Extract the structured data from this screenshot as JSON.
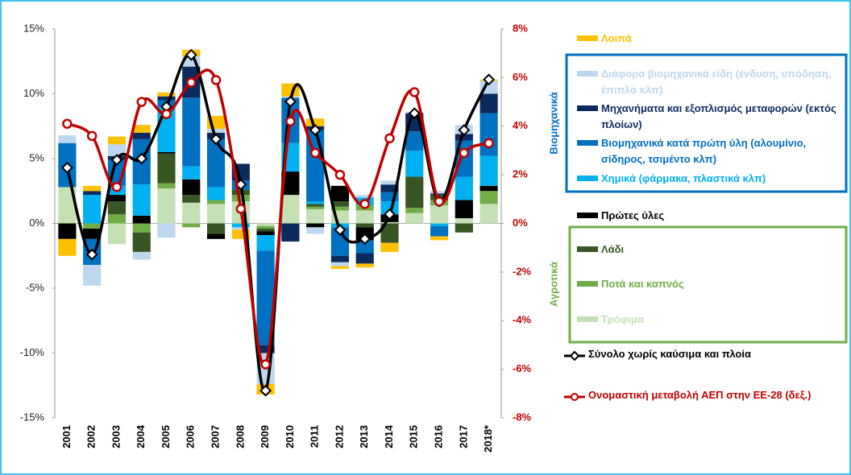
{
  "chart_data": {
    "type": "bar",
    "categories": [
      "2001",
      "2002",
      "2003",
      "2004",
      "2005",
      "2006",
      "2007",
      "2008",
      "2009",
      "2010",
      "2011",
      "2012",
      "2013",
      "2014",
      "2015",
      "2016",
      "2017",
      "2018*"
    ],
    "ylim": [
      -15,
      15
    ],
    "yticks": [
      {
        "value": -15,
        "label": "-15%"
      },
      {
        "value": -10,
        "label": "-10%"
      },
      {
        "value": -5,
        "label": "-5%"
      },
      {
        "value": 0,
        "label": "0%"
      },
      {
        "value": 5,
        "label": "5%"
      },
      {
        "value": 10,
        "label": "10%"
      },
      {
        "value": 15,
        "label": "15%"
      }
    ],
    "y2lim": [
      -8,
      8
    ],
    "y2ticks": [
      {
        "value": -8,
        "label": "-8%"
      },
      {
        "value": -6,
        "label": "-6%"
      },
      {
        "value": -4,
        "label": "-4%"
      },
      {
        "value": -2,
        "label": "-2%"
      },
      {
        "value": 0,
        "label": "0%"
      },
      {
        "value": 2,
        "label": "2%"
      },
      {
        "value": 4,
        "label": "4%"
      },
      {
        "value": 6,
        "label": "6%"
      },
      {
        "value": 8,
        "label": "8%"
      }
    ],
    "annotations": [
      "Βιομηχανικά",
      "Αγροτικά"
    ],
    "series": [
      {
        "name": "Λοιπά",
        "color": "#ffc000",
        "values": [
          -1.3,
          0.4,
          0.6,
          0.6,
          0.3,
          0.5,
          1.0,
          -0.7,
          -0.8,
          1.0,
          0.6,
          -0.2,
          -0.3,
          -0.7,
          0,
          -0.3,
          0,
          0.1
        ]
      },
      {
        "name": "Διάφορα βιομηχανικά είδη (ένδυση, υπόδηση, έπιπλα κλπ)",
        "color": "#bdd7ee",
        "values": [
          0.6,
          -1.6,
          0.9,
          -0.6,
          -1.1,
          0.8,
          0.3,
          -0.2,
          -2.4,
          0.1,
          -0.5,
          -0.3,
          0.2,
          0.3,
          0.1,
          0.2,
          0.7,
          1.0
        ]
      },
      {
        "name": "Μηχανήματα και εξοπλισμός μεταφορών (εκτός πλοίων)",
        "color": "#0b2a5e",
        "values": [
          0,
          0.3,
          0.3,
          0.5,
          0.3,
          2.4,
          0.5,
          1.3,
          -0.6,
          -1.4,
          0.3,
          -0.5,
          -0.8,
          0.6,
          1.4,
          0.1,
          0.5,
          1.5
        ]
      },
      {
        "name": "Βιομηχανικά κατά πρώτη ύλη (αλουμίνιο, σίδηρος, τσιμέντο κλπ)",
        "color": "#0070c0",
        "values": [
          3.4,
          -2.0,
          2.0,
          3.5,
          0.5,
          5.3,
          3.7,
          0.7,
          -7.3,
          3.5,
          5.5,
          -2.2,
          -1.0,
          0.7,
          1.5,
          -0.8,
          2.8,
          3.3
        ]
      },
      {
        "name": "Χημικά (φάρμακα, πλαστικά κλπ)",
        "color": "#00b0f0",
        "values": [
          0,
          2.2,
          0.7,
          2.4,
          3.5,
          1.0,
          1.0,
          -0.3,
          -1.2,
          2.2,
          0.2,
          -0.3,
          0.6,
          1.0,
          2.0,
          -0.2,
          1.8,
          2.3
        ]
      },
      {
        "name": "Πρώτες ύλες",
        "color": "#000000",
        "values": [
          -1.2,
          -0.8,
          0.5,
          0.6,
          0.1,
          1.2,
          -0.4,
          0,
          -0.3,
          1.8,
          -0.3,
          1.2,
          -1.0,
          0.6,
          0,
          0,
          1.4,
          0.4
        ]
      },
      {
        "name": "Λάδι",
        "color": "#375623",
        "values": [
          0,
          0,
          1.0,
          -1.5,
          2.3,
          0.6,
          -0.8,
          0.4,
          -0.2,
          0,
          0.2,
          0.4,
          -0.3,
          -1.5,
          2.4,
          0.4,
          -0.7,
          0
        ]
      },
      {
        "name": "Ποτά και καπνός",
        "color": "#70ad47",
        "values": [
          0,
          -0.4,
          0.7,
          -0.7,
          0.4,
          -0.3,
          0.3,
          0.5,
          -0.2,
          0,
          0.2,
          0.3,
          0.4,
          0,
          0.4,
          0.4,
          0,
          1.0
        ]
      },
      {
        "name": "Τρόφιμα",
        "color": "#c5e0b4",
        "values": [
          2.8,
          0,
          -1.6,
          0,
          2.7,
          1.6,
          1.5,
          1.7,
          -0.2,
          2.2,
          1.1,
          1.0,
          1.0,
          0.1,
          0.8,
          1.4,
          0.4,
          1.5
        ]
      },
      {
        "name": "Σύνολο χωρίς καύσιμα και πλοία",
        "color": "#000000",
        "type": "line",
        "values": [
          4.3,
          -2.4,
          4.9,
          5.0,
          9.0,
          13.0,
          6.5,
          3.0,
          -12.9,
          9.4,
          7.2,
          -0.5,
          -1.2,
          0.7,
          8.5,
          1.7,
          7.2,
          11.1
        ]
      },
      {
        "name": "Ονομαστική μεταβολή ΑΕΠ στην ΕΕ-28 (δεξ.)",
        "color": "#c00000",
        "type": "line",
        "axis": "y2",
        "values": [
          4.1,
          3.6,
          1.5,
          5.0,
          4.5,
          5.8,
          5.9,
          0.6,
          -5.8,
          4.2,
          2.9,
          2.0,
          0.8,
          3.5,
          5.4,
          0.9,
          2.9,
          3.3
        ]
      }
    ]
  }
}
